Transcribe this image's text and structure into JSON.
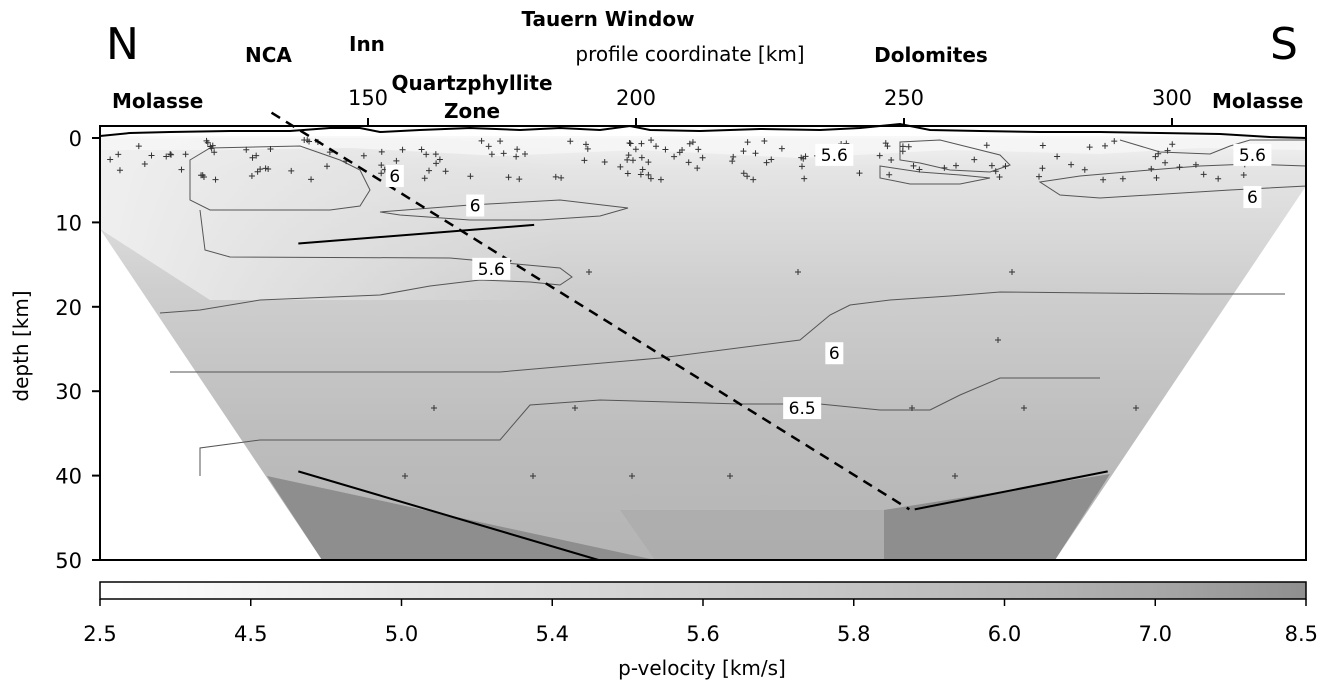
{
  "chart_data": {
    "type": "heatmap",
    "title": "",
    "xlabel": "profile coordinate [km]",
    "ylabel": "depth [km]",
    "xlim": [
      100,
      325
    ],
    "ylim": [
      0,
      50
    ],
    "x_ticks": [
      "150",
      "200",
      "250",
      "300"
    ],
    "x_tick_values": [
      150,
      200,
      250,
      300
    ],
    "y_ticks": [
      "0",
      "10",
      "20",
      "30",
      "40",
      "50"
    ],
    "y_tick_values": [
      0,
      10,
      20,
      30,
      40,
      50
    ],
    "end_labels": {
      "north": "N",
      "south": "S"
    },
    "region_labels": [
      {
        "text": "Molasse",
        "x": 105
      },
      {
        "text": "NCA",
        "x": 134
      },
      {
        "text": "Inn",
        "x": 155
      },
      {
        "text": "Quartzphyllite",
        "x": 174
      },
      {
        "text": "Zone",
        "x": 174
      },
      {
        "text": "Tauern Window",
        "x": 197
      },
      {
        "text": "Dolomites",
        "x": 259
      },
      {
        "text": "Molasse",
        "x": 319
      }
    ],
    "contour_labels": [
      {
        "text": "6",
        "x": 155,
        "depth": 4.5
      },
      {
        "text": "6",
        "x": 170,
        "depth": 8
      },
      {
        "text": "5.6",
        "x": 173,
        "depth": 15.5
      },
      {
        "text": "5.6",
        "x": 237,
        "depth": 2
      },
      {
        "text": "5.6",
        "x": 315,
        "depth": 2
      },
      {
        "text": "6",
        "x": 315,
        "depth": 7
      },
      {
        "text": "6",
        "x": 237,
        "depth": 25.5
      },
      {
        "text": "6.5",
        "x": 231,
        "depth": 32
      }
    ],
    "colorbar": {
      "label": "p-velocity [km/s]",
      "ticks": [
        "2.5",
        "4.5",
        "5.0",
        "5.4",
        "5.6",
        "5.8",
        "6.0",
        "7.0",
        "8.5"
      ],
      "colors": [
        "#ffffff",
        "#f4f4f4",
        "#e6e6e6",
        "#dadada",
        "#cfcfcf",
        "#c4c4c4",
        "#b7b7b7",
        "#a7a7a7",
        "#8f8f8f"
      ]
    },
    "dashed_line": [
      [
        132,
        -3
      ],
      [
        251,
        44
      ]
    ],
    "fault_lines": [
      [
        [
          137,
          12.5
        ],
        [
          181,
          10.3
        ]
      ],
      [
        [
          137,
          39.5
        ],
        [
          193,
          50
        ]
      ],
      [
        [
          252,
          44
        ],
        [
          288,
          39.5
        ]
      ]
    ],
    "grid": false
  }
}
